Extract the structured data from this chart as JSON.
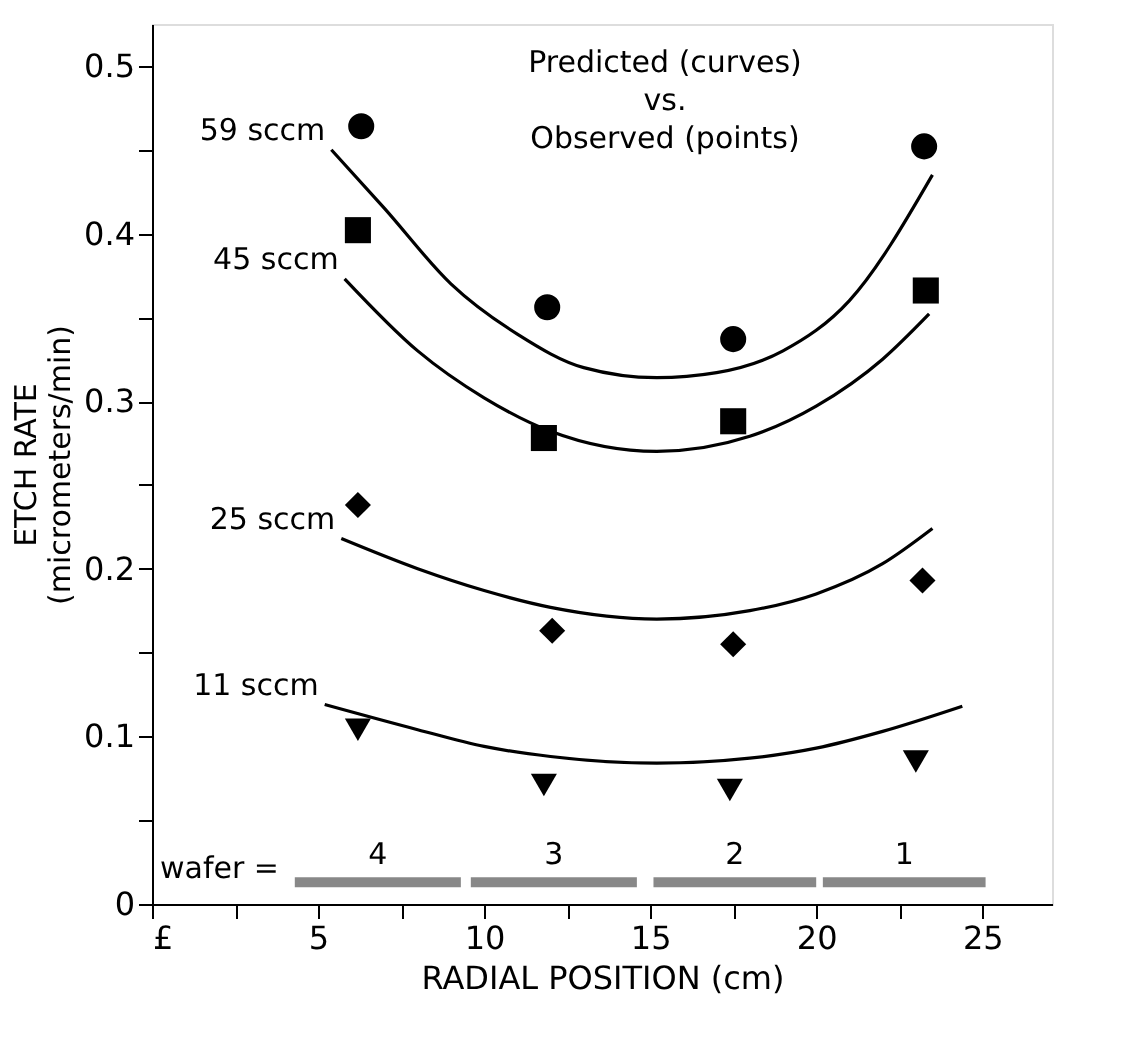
{
  "chart_data": {
    "type": "scatter",
    "xlabel": "RADIAL POSITION  (cm)",
    "ylabel": "ETCH RATE\n(micrometers/min)",
    "xlim": [
      0,
      27.1
    ],
    "ylim": [
      0,
      0.525
    ],
    "xticks": [
      {
        "value": 0,
        "label": "£"
      },
      {
        "value": 2.5,
        "label": null
      },
      5,
      {
        "value": 7.5,
        "label": null
      },
      10,
      {
        "value": 12.5,
        "label": null
      },
      15,
      {
        "value": 17.5,
        "label": null
      },
      20,
      {
        "value": 22.5,
        "label": null
      },
      25
    ],
    "yticks": [
      0,
      {
        "value": 0.05,
        "label": null
      },
      0.1,
      {
        "value": 0.15,
        "label": null
      },
      0.2,
      {
        "value": 0.25,
        "label": null
      },
      0.3,
      {
        "value": 0.35,
        "label": null
      },
      0.4,
      {
        "value": 0.45,
        "label": null
      },
      0.5
    ],
    "grid": false,
    "series": [
      {
        "name": "59 sccm",
        "type": "line",
        "color": "#000000",
        "marker": "none",
        "x": [
          5.4,
          7,
          9,
          11,
          13,
          15.2,
          17,
          19,
          21,
          23.5
        ],
        "values": [
          0.45,
          0.415,
          0.37,
          0.34,
          0.32,
          0.314,
          0.317,
          0.33,
          0.36,
          0.435
        ]
      },
      {
        "color": "#000000",
        "marker": "circle",
        "x": [
          6.3,
          11.9,
          17.5,
          23.25
        ],
        "values": [
          0.464,
          0.356,
          0.337,
          0.452
        ]
      },
      {
        "name": "45 sccm",
        "type": "line",
        "color": "#000000",
        "marker": "none",
        "x": [
          5.8,
          8,
          10,
          12,
          15.2,
          18,
          20,
          22,
          23.4
        ],
        "values": [
          0.373,
          0.33,
          0.302,
          0.282,
          0.27,
          0.279,
          0.297,
          0.325,
          0.352
        ]
      },
      {
        "color": "#000000",
        "marker": "square",
        "x": [
          6.2,
          11.8,
          17.5,
          23.3
        ],
        "values": [
          0.402,
          0.278,
          0.288,
          0.366
        ]
      },
      {
        "name": "25 sccm",
        "type": "line",
        "color": "#000000",
        "marker": "none",
        "x": [
          5.7,
          8,
          10,
          12,
          15.2,
          18,
          20,
          22,
          23.5
        ],
        "values": [
          0.218,
          0.2,
          0.187,
          0.177,
          0.17,
          0.175,
          0.185,
          0.203,
          0.224
        ]
      },
      {
        "color": "#000000",
        "marker": "diamond",
        "x": [
          6.2,
          12.05,
          17.5,
          23.2
        ],
        "values": [
          0.238,
          0.163,
          0.155,
          0.193
        ]
      },
      {
        "name": "11 sccm",
        "type": "line",
        "color": "#000000",
        "marker": "none",
        "x": [
          5.2,
          8,
          10,
          12,
          15.2,
          18,
          20,
          22,
          24.4
        ],
        "values": [
          0.119,
          0.104,
          0.094,
          0.088,
          0.084,
          0.087,
          0.093,
          0.103,
          0.118
        ]
      },
      {
        "color": "#000000",
        "marker": "triangle-down",
        "x": [
          6.2,
          11.8,
          17.4,
          23.0
        ],
        "values": [
          0.104,
          0.071,
          0.068,
          0.085
        ]
      },
      {
        "name": "4",
        "type": "line",
        "color": "#888888",
        "marker": "none",
        "x": [
          4.3,
          9.3
        ],
        "values": [
          0.013,
          0.013
        ]
      },
      {
        "name": "3",
        "type": "line",
        "color": "#888888",
        "marker": "none",
        "x": [
          9.6,
          14.6
        ],
        "values": [
          0.013,
          0.013
        ]
      },
      {
        "name": "2",
        "type": "line",
        "color": "#888888",
        "marker": "none",
        "x": [
          15.1,
          20.0
        ],
        "values": [
          0.013,
          0.013
        ]
      },
      {
        "name": "1",
        "type": "line",
        "color": "#888888",
        "marker": "none",
        "x": [
          20.2,
          25.1
        ],
        "values": [
          0.013,
          0.013
        ]
      }
    ],
    "annotations": [
      "Predicted (curves)\nvs.\nObserved (points)",
      "wafer ="
    ]
  }
}
